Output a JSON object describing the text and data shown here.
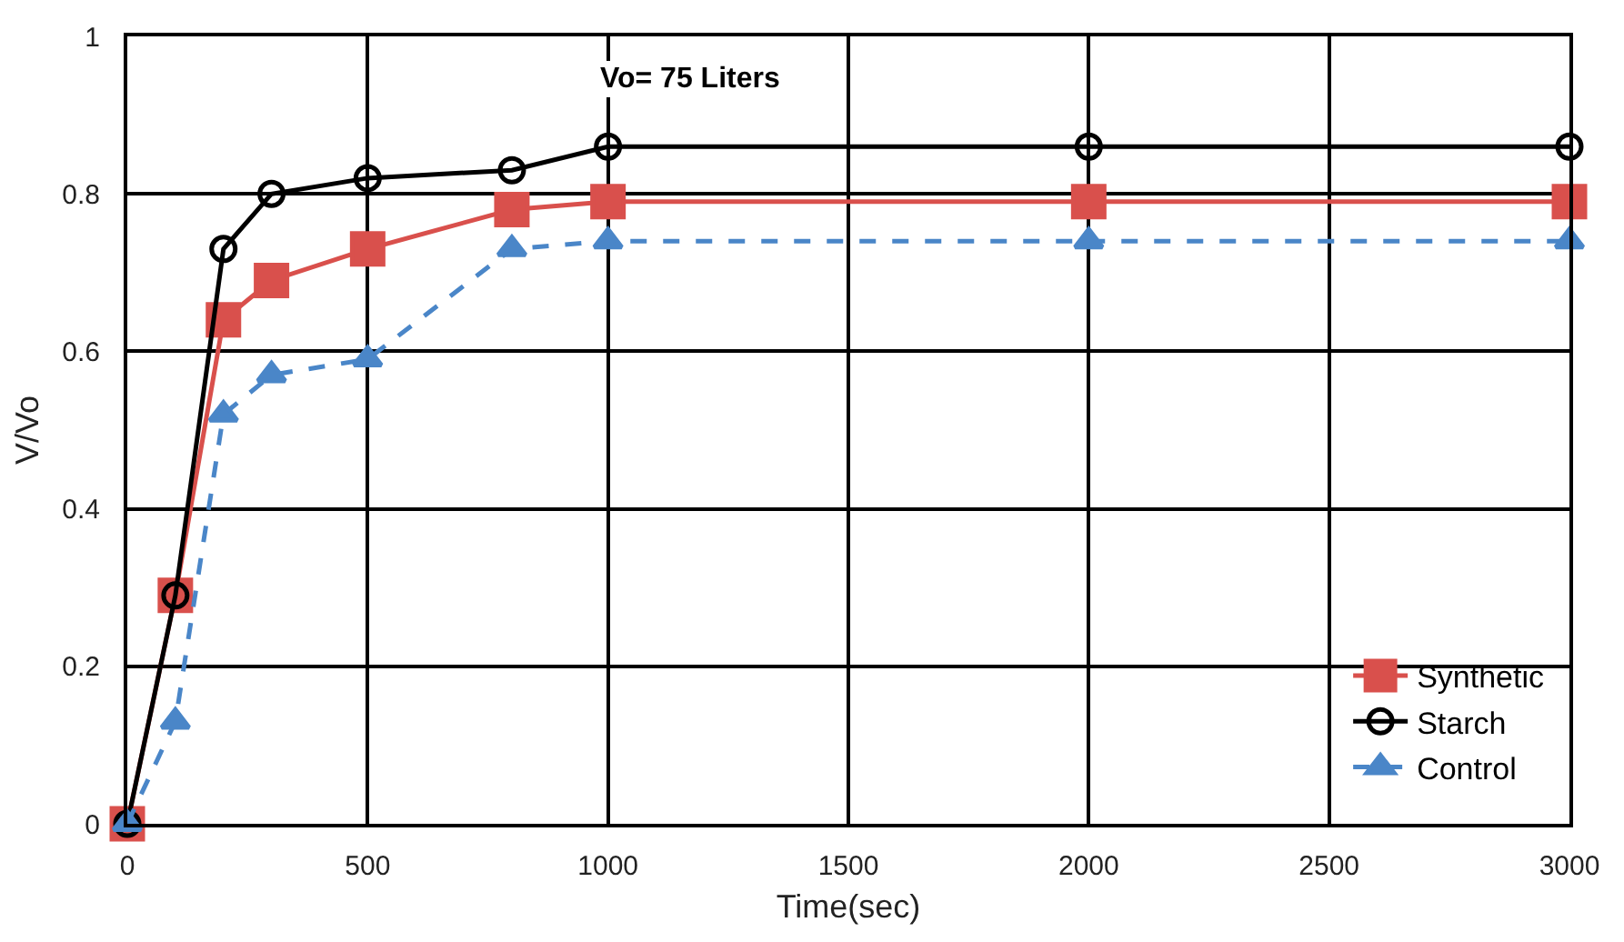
{
  "chart_data": {
    "type": "line",
    "xlabel": "Time(sec)",
    "ylabel": "V/Vo",
    "annotations": [
      "Vo= 75 Liters"
    ],
    "x": [
      0,
      100,
      200,
      300,
      500,
      800,
      1000,
      2000,
      3000
    ],
    "series": [
      {
        "name": "Synthetic",
        "color": "#d9504c",
        "marker": "square",
        "line_style": "solid",
        "values": [
          0,
          0.29,
          0.64,
          0.69,
          0.73,
          0.78,
          0.79,
          0.79,
          0.79
        ]
      },
      {
        "name": "Starch",
        "color": "#000000",
        "marker": "circle",
        "line_style": "solid",
        "values": [
          0,
          0.29,
          0.73,
          0.8,
          0.82,
          0.83,
          0.86,
          0.86,
          0.86
        ]
      },
      {
        "name": "Control",
        "color": "#4a86c8",
        "marker": "triangle",
        "line_style": "dashed",
        "values": [
          0,
          0.13,
          0.52,
          0.57,
          0.59,
          0.73,
          0.74,
          0.74,
          0.74
        ]
      }
    ],
    "xlim": [
      0,
      3000
    ],
    "xticks": [
      0,
      500,
      1000,
      1500,
      2000,
      2500,
      3000
    ],
    "ylim": [
      0,
      1
    ],
    "yticks": [
      0,
      0.2,
      0.4,
      0.6,
      0.8,
      1
    ],
    "grid": true,
    "legend": "bottom right"
  }
}
